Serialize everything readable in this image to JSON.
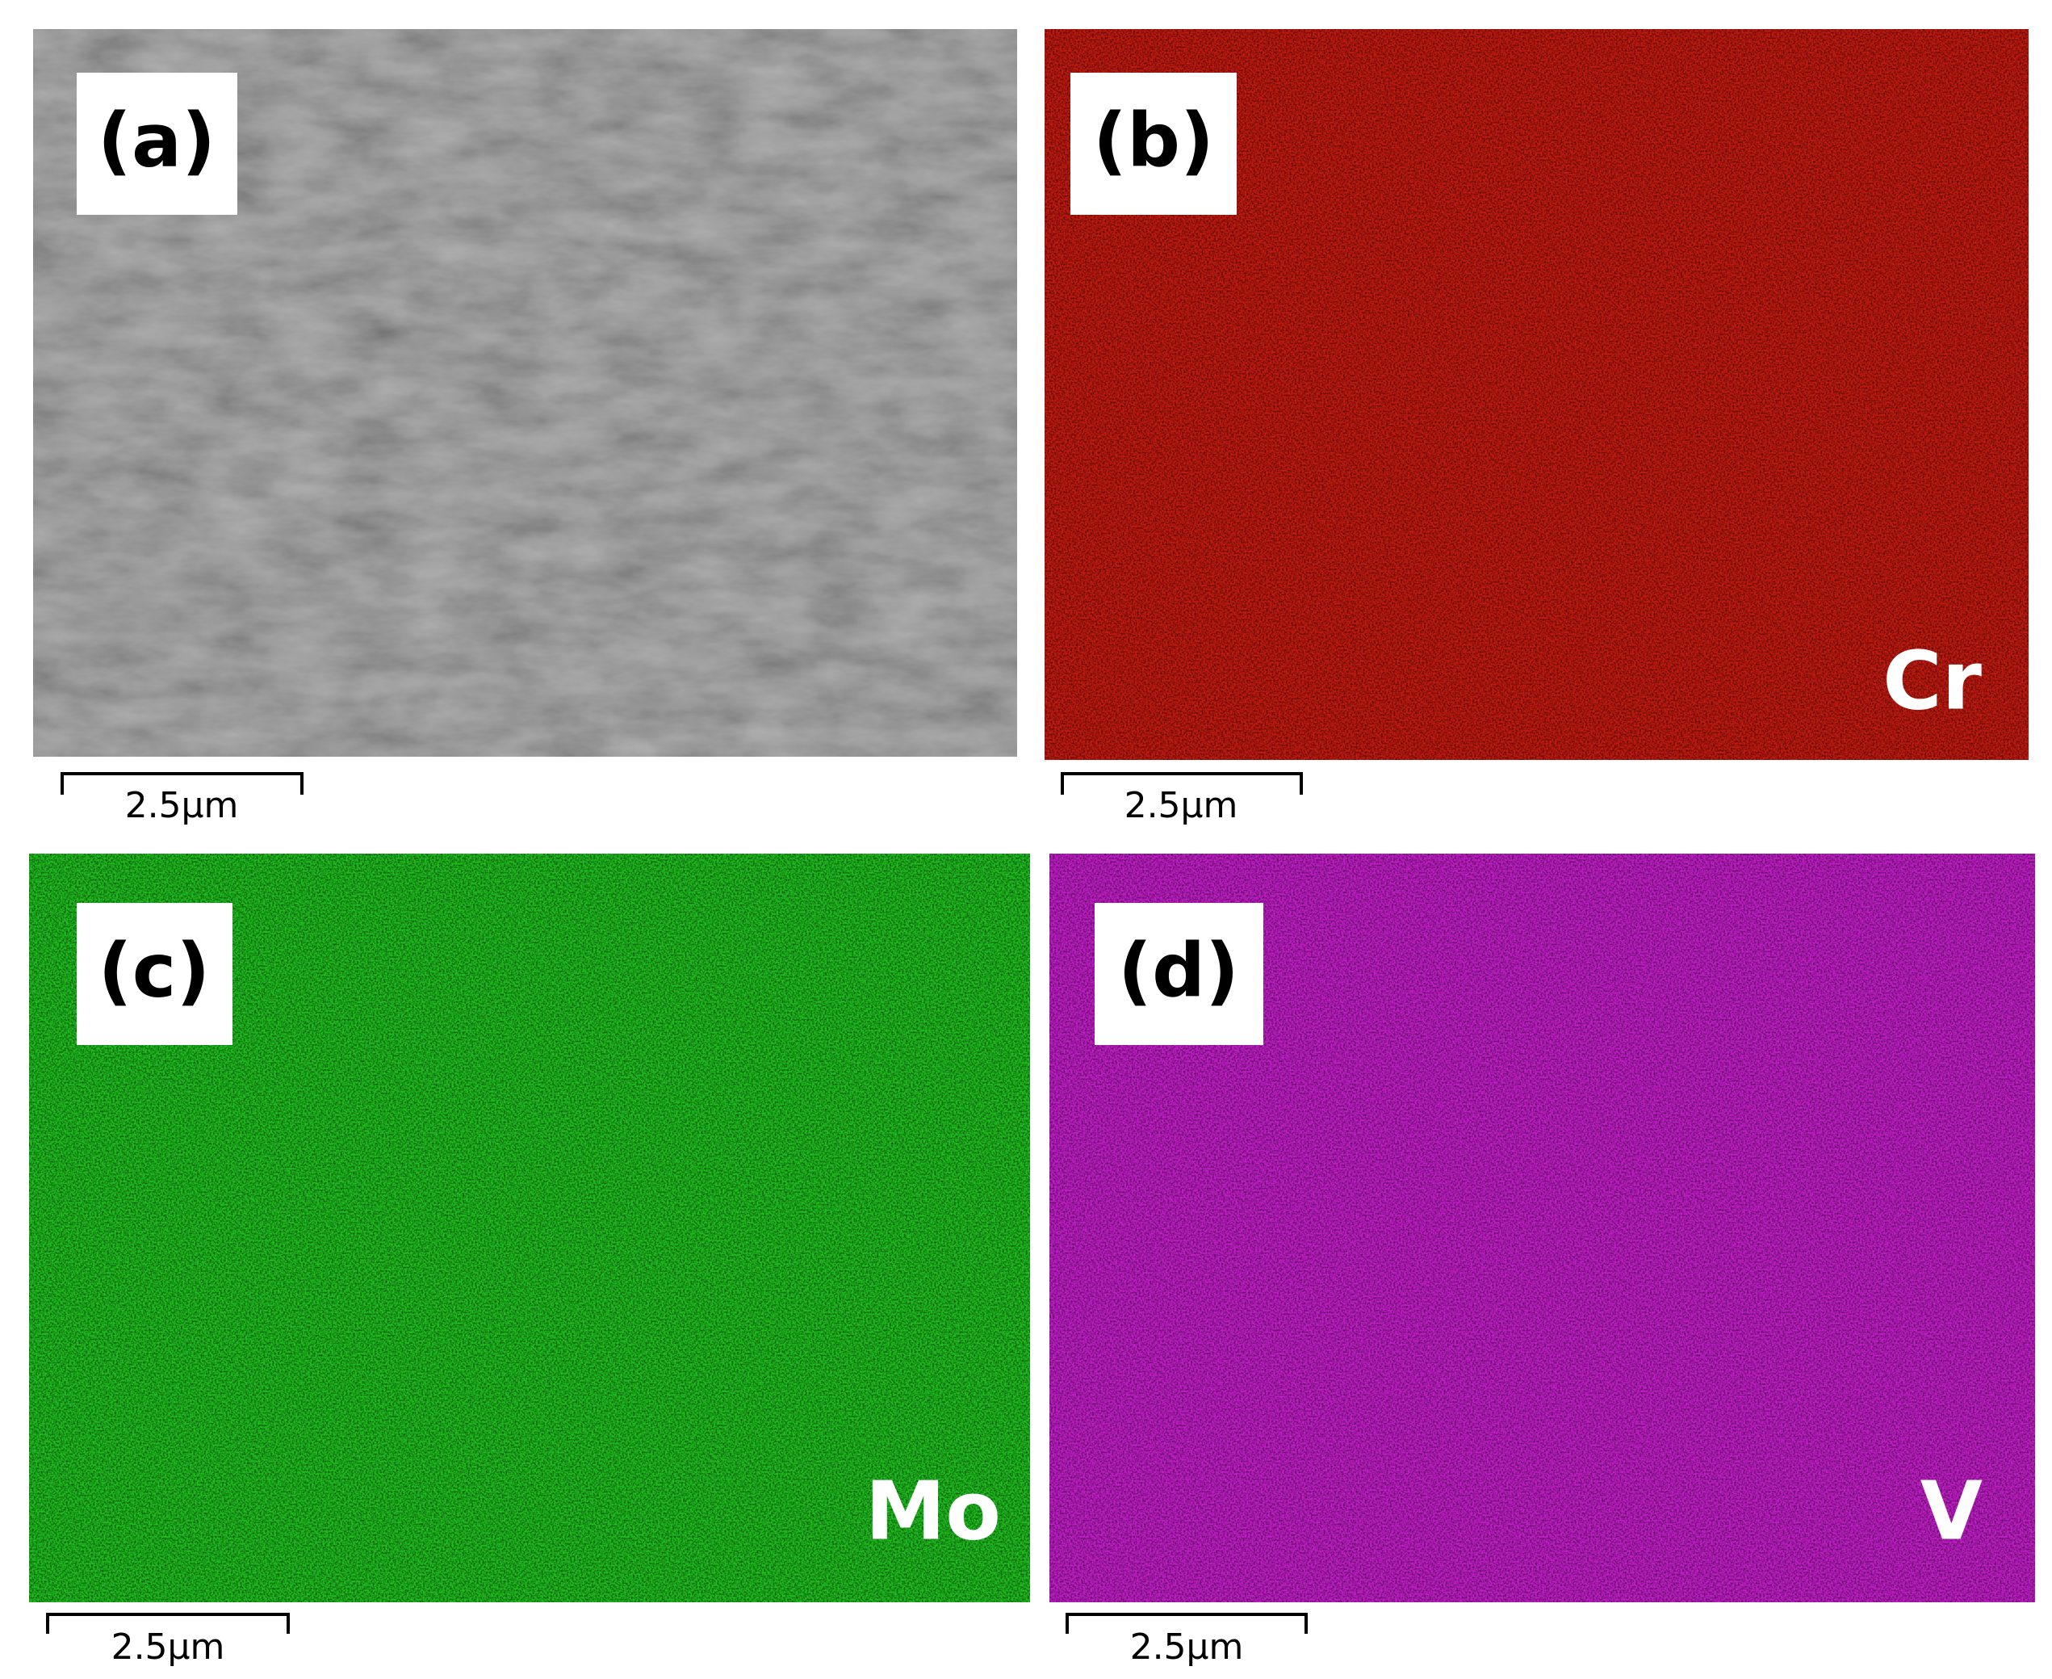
{
  "panels": [
    {
      "label": "(a)",
      "scale_bar": "2.5μm"
    },
    {
      "label": "(b)",
      "element": "Cr",
      "scale_bar": "2.5μm"
    },
    {
      "label": "(c)",
      "element": "Mo",
      "scale_bar": "2.5μm"
    },
    {
      "label": "(d)",
      "element": "V",
      "scale_bar": "2.5μm"
    }
  ]
}
